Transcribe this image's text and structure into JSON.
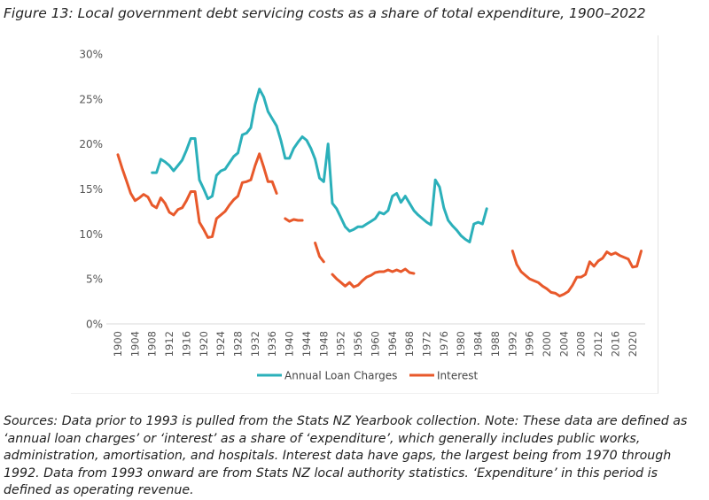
{
  "title": "Figure 13: Local government debt servicing costs as a share of total expenditure, 1900–2022",
  "sources": "Sources: Data prior to 1993 is pulled from the Stats NZ Yearbook collection. Note: These data are defined as ‘annual loan charges’ or ‘interest’ as a share of ‘expenditure’, which generally includes public works, administration, amortisation, and hospitals. Interest data have gaps, the largest being from 1970 through 1992. Data from 1993 onward are from Stats NZ local authority statistics. ‘Expenditure’ in this period is defined as operating revenue.",
  "chart_data": {
    "type": "line",
    "title": "",
    "xlabel": "",
    "ylabel": "",
    "xlim": [
      1900,
      2022
    ],
    "ylim": [
      0,
      30
    ],
    "yticks": [
      0,
      5,
      10,
      15,
      20,
      25,
      30
    ],
    "ytick_labels": [
      "0%",
      "5%",
      "10%",
      "15%",
      "20%",
      "25%",
      "30%"
    ],
    "xtick_labels": [
      "1900",
      "1904",
      "1908",
      "1912",
      "1916",
      "1920",
      "1924",
      "1928",
      "1932",
      "1936",
      "1940",
      "1944",
      "1948",
      "1952",
      "1956",
      "1960",
      "1964",
      "1968",
      "1972",
      "1976",
      "1980",
      "1984",
      "1988",
      "1992",
      "1996",
      "2000",
      "2004",
      "2008",
      "2012",
      "2016",
      "2020"
    ],
    "legend_position": "bottom",
    "series": [
      {
        "name": "Annual Loan Charges",
        "color": "#2BB0BA",
        "start_year": 1908,
        "values": [
          16.8,
          16.8,
          18.3,
          18.0,
          17.6,
          17.0,
          17.6,
          18.2,
          19.3,
          20.6,
          20.6,
          16.0,
          15.0,
          13.9,
          14.2,
          16.5,
          17.0,
          17.2,
          17.9,
          18.6,
          19.0,
          21.0,
          21.2,
          21.8,
          24.4,
          26.1,
          25.2,
          23.6,
          22.8,
          22.0,
          20.4,
          18.4,
          18.4,
          19.5,
          20.2,
          20.8,
          20.4,
          19.5,
          18.3,
          16.2,
          15.8,
          20.0,
          13.4,
          12.8,
          11.8,
          10.8,
          10.3,
          10.5,
          10.8,
          10.8,
          11.1,
          11.4,
          11.7,
          12.4,
          12.2,
          12.6,
          14.2,
          14.5,
          13.5,
          14.2,
          13.4,
          12.6,
          12.1,
          11.7,
          11.3,
          11.0,
          16.0,
          15.2,
          12.9,
          11.5,
          10.9,
          10.4,
          9.8,
          9.4,
          9.1,
          11.1,
          11.3,
          11.1,
          12.8
        ]
      },
      {
        "name": "Interest",
        "color": "#E8592B",
        "start_year": 1900,
        "values": [
          18.8,
          17.3,
          15.9,
          14.5,
          13.7,
          14.0,
          14.4,
          14.1,
          13.2,
          12.9,
          14.0,
          13.4,
          12.4,
          12.1,
          12.7,
          12.9,
          13.7,
          14.7,
          14.7,
          11.3,
          10.5,
          9.6,
          9.7,
          11.7,
          12.1,
          12.5,
          13.2,
          13.8,
          14.2,
          15.7,
          15.8,
          16.0,
          17.6,
          18.9,
          17.4,
          15.8,
          15.8,
          14.5,
          null,
          11.7,
          11.4,
          11.6,
          11.5,
          11.5,
          null,
          null,
          9.0,
          7.5,
          6.9,
          null,
          5.5,
          5.0,
          4.6,
          4.2,
          4.6,
          4.1,
          4.3,
          4.8,
          5.2,
          5.4,
          5.7,
          5.8,
          5.8,
          6.0,
          5.8,
          6.0,
          5.8,
          6.1,
          5.7,
          5.6,
          null,
          null,
          null,
          null,
          null,
          null,
          null,
          null,
          null,
          null,
          null,
          null,
          null,
          null,
          null,
          null,
          null,
          null,
          null,
          null,
          null,
          null,
          8.1,
          6.6,
          5.8,
          5.4,
          5.0,
          4.8,
          4.6,
          4.2,
          3.9,
          3.5,
          3.4,
          3.1,
          3.3,
          3.6,
          4.3,
          5.2,
          5.2,
          5.5,
          6.9,
          6.4,
          7.0,
          7.3,
          8.0,
          7.7,
          7.9,
          7.6,
          7.4,
          7.2,
          6.3,
          6.4,
          8.1
        ]
      }
    ]
  }
}
